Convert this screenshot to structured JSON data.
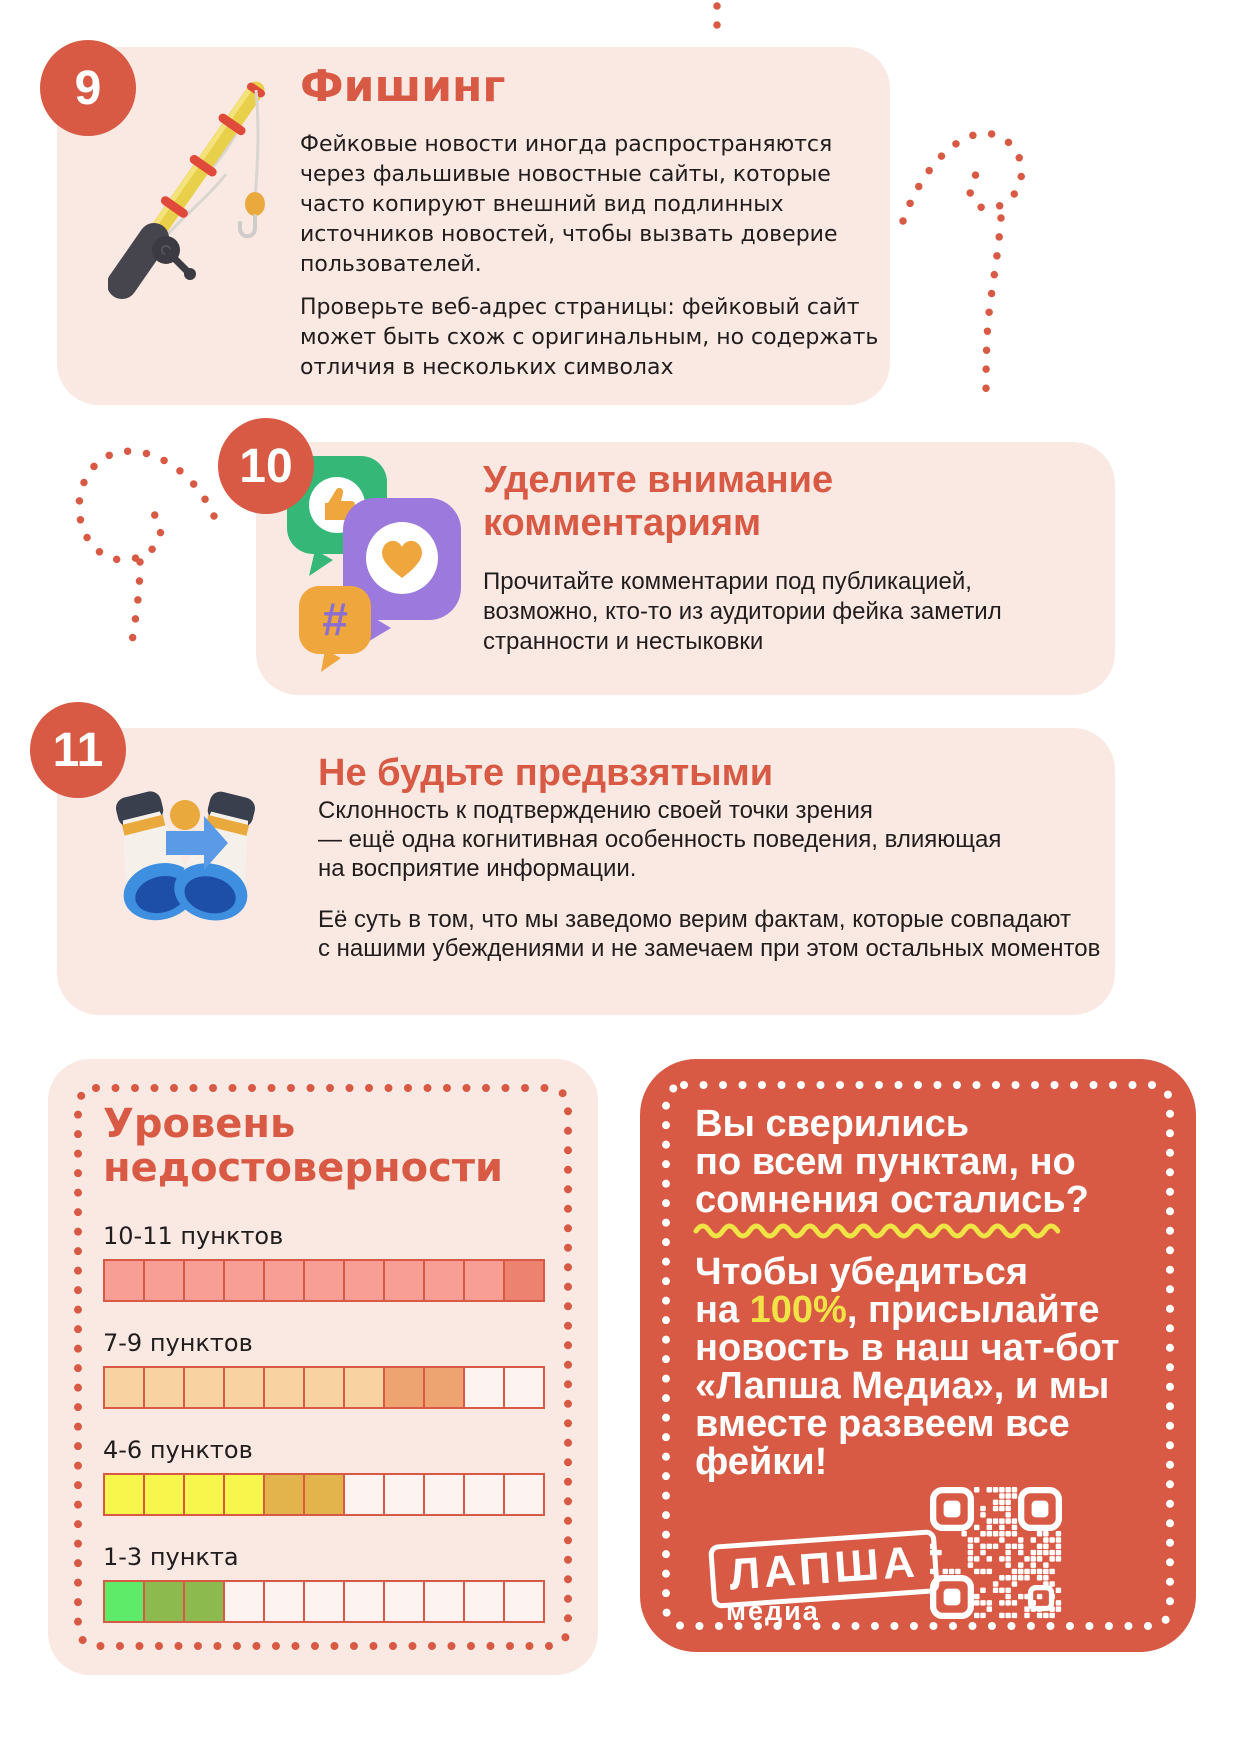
{
  "theme": {
    "accent": "#d85a44",
    "card_bg": "#fae9e3",
    "text": "#211d1c",
    "yellow": "#f0e345",
    "empty_cell": "#fdf3f0"
  },
  "icons": {
    "section_9": "fishing-rod",
    "section_10": "social-comment-bubbles",
    "section_11": "binoculars",
    "cta": "qr-code"
  },
  "sections": [
    {
      "number": "9",
      "title": "Фишинг",
      "paragraph1": [
        "Фейковые новости иногда распространяются",
        "через фальшивые новостные сайты, которые",
        "часто копируют внешний вид подлинных",
        "источников новостей, чтобы вызвать доверие",
        "пользователей."
      ],
      "paragraph2": [
        "Проверьте веб-адрес страницы: фейковый сайт",
        "может быть схож с оригинальным, но содержать",
        "отличия в нескольких символах"
      ]
    },
    {
      "number": "10",
      "title_lines": [
        "Уделите внимание",
        "комментариям"
      ],
      "body": [
        "Прочитайте комментарии под публикацией,",
        "возможно, кто-то из аудитории фейка заметил",
        "странности и нестыковки"
      ]
    },
    {
      "number": "11",
      "title": "Не будьте предвзятыми",
      "paragraph1": [
        "Склонность к подтверждению своей точки зрения",
        "— ещё одна когнитивная особенность поведения, влияющая",
        "на восприятие информации."
      ],
      "paragraph2": [
        "Её суть в том, что мы заведомо верим фактам, которые совпадают",
        "с нашими убеждениями и не замечаем при этом остальных моментов"
      ]
    }
  ],
  "level_panel": {
    "title_lines": [
      "Уровень",
      "недостоверности"
    ],
    "empty_color": "#fdf3f0",
    "border_color": "#d85a44",
    "rows": [
      {
        "label": "10-11 пунктов",
        "total": 11,
        "filled": 10,
        "dark": 1,
        "fill_color": "#f99e95",
        "dark_color": "#ee8270"
      },
      {
        "label": "7-9 пунктов",
        "total": 11,
        "filled": 7,
        "dark": 2,
        "fill_color": "#f9d2a2",
        "dark_color": "#eda471"
      },
      {
        "label": "4-6 пунктов",
        "total": 11,
        "filled": 4,
        "dark": 2,
        "fill_color": "#f8f64d",
        "dark_color": "#e2b44b"
      },
      {
        "label": "1-3 пункта",
        "total": 11,
        "filled": 1,
        "dark": 2,
        "fill_color": "#5deb69",
        "dark_color": "#8cba4e"
      }
    ]
  },
  "cta_panel": {
    "heading_lines": [
      "Вы сверились",
      "по всем пунктам, но",
      "сомнения остались?"
    ],
    "body_line1": "Чтобы убедиться",
    "body_line2_pre": "на ",
    "body_line2_em": "100%",
    "body_line2_post": ", присылайте",
    "body_rest": [
      "новость в наш чат-бот",
      "«Лапша Медиа», и мы",
      "вместе развеем все",
      "фейки!"
    ],
    "logo_name": "ЛАПША",
    "logo_sub": "медиа"
  }
}
